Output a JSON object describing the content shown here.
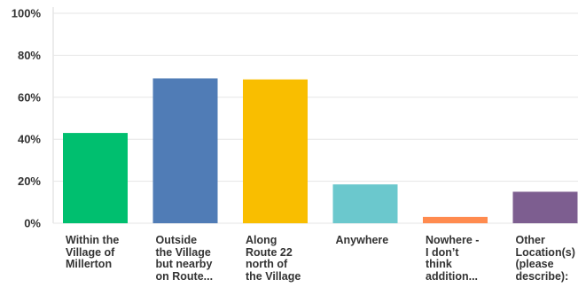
{
  "chart_data": {
    "type": "bar",
    "categories": [
      "Within the\nVillage of\nMillerton",
      "Outside\nthe Village\nbut nearby\non Route...",
      "Along\nRoute 22\nnorth of\nthe Village",
      "Anywhere",
      "Nowhere -\nI don’t\nthink\naddition...",
      "Other\nLocation(s)\n(please\ndescribe):"
    ],
    "values": [
      43,
      69,
      68.5,
      18.5,
      3,
      15
    ],
    "colors": [
      "#00bf6f",
      "#507cb6",
      "#f9be00",
      "#6bc8cd",
      "#ff8b4f",
      "#7d5e90"
    ],
    "yticks": [
      "0%",
      "20%",
      "40%",
      "60%",
      "80%",
      "100%"
    ],
    "ylim": [
      0,
      100
    ],
    "grid": true
  }
}
